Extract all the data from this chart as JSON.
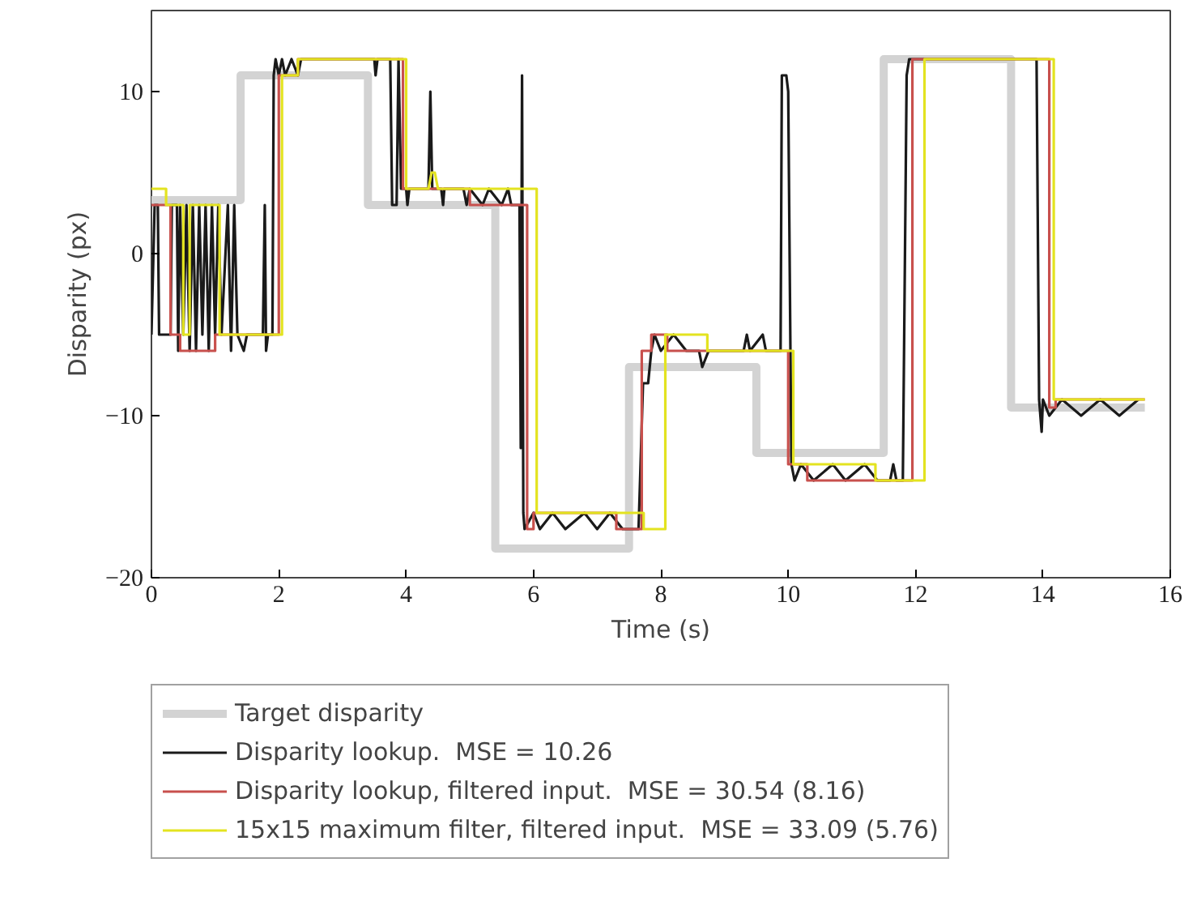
{
  "chart_data": {
    "type": "line",
    "xlabel": "Time (s)",
    "ylabel": "Disparity (px)",
    "xlim": [
      0,
      16
    ],
    "ylim": [
      -20,
      15
    ],
    "xticks": [
      0,
      2,
      4,
      6,
      8,
      10,
      12,
      14,
      16
    ],
    "yticks": [
      {
        "value": -20,
        "label": "−20"
      },
      {
        "value": -10,
        "label": "−10"
      },
      0,
      10
    ],
    "grid": false,
    "legend": "bottom",
    "line_style": "solid",
    "marker": "none",
    "series": [
      {
        "name": "Target disparity",
        "color": "#d3d3d3",
        "x": [
          0,
          1.4,
          1.4,
          3.4,
          3.4,
          5.4,
          5.4,
          7.5,
          7.5,
          9.5,
          9.5,
          11.5,
          11.5,
          13.5,
          13.5,
          15.6
        ],
        "values": [
          3.3,
          3.3,
          11,
          11,
          3,
          3,
          -18.2,
          -18.2,
          -7,
          -7,
          -12.3,
          -12.3,
          12,
          12,
          -9.5,
          -9.5
        ]
      },
      {
        "name": "Disparity lookup.  MSE = 10.26",
        "color": "#1a1a1a",
        "x": [
          0,
          0.05,
          0.1,
          0.12,
          0.3,
          0.32,
          0.4,
          0.42,
          0.45,
          0.5,
          0.55,
          0.6,
          0.65,
          0.7,
          0.75,
          0.8,
          0.85,
          0.9,
          0.95,
          1.0,
          1.05,
          1.1,
          1.2,
          1.25,
          1.3,
          1.35,
          1.45,
          1.5,
          1.75,
          1.78,
          1.8,
          1.83,
          1.9,
          1.92,
          1.95,
          2.0,
          2.05,
          2.1,
          2.2,
          2.3,
          2.35,
          3.5,
          3.52,
          3.55,
          3.75,
          3.78,
          3.85,
          3.88,
          3.92,
          4.0,
          4.02,
          4.05,
          4.35,
          4.38,
          4.41,
          4.55,
          4.58,
          4.6,
          4.9,
          4.95,
          5.0,
          5.2,
          5.3,
          5.5,
          5.6,
          5.65,
          5.78,
          5.8,
          5.82,
          5.84,
          5.86,
          6.0,
          6.1,
          6.3,
          6.5,
          6.8,
          7.0,
          7.2,
          7.4,
          7.5,
          7.65,
          7.72,
          7.8,
          7.85,
          7.9,
          8.0,
          8.2,
          8.4,
          8.6,
          8.65,
          8.75,
          9.3,
          9.35,
          9.4,
          9.6,
          9.65,
          9.88,
          9.9,
          9.97,
          10.0,
          10.05,
          10.1,
          10.2,
          10.4,
          10.7,
          10.9,
          11.2,
          11.4,
          11.6,
          11.65,
          11.7,
          11.8,
          11.86,
          11.9,
          13.9,
          13.94,
          13.98,
          14.0,
          14.1,
          14.3,
          14.6,
          14.9,
          15.2,
          15.5
        ],
        "values": [
          -5,
          3,
          3,
          -5,
          -5,
          3,
          3,
          -6,
          3,
          -5,
          3,
          -6,
          3,
          -6,
          3,
          -5,
          3,
          -6,
          3,
          -5,
          3,
          -5,
          3,
          -6,
          3,
          -5,
          -6,
          -5,
          -5,
          3,
          -6,
          -5,
          -5,
          11,
          12,
          11,
          12,
          11,
          12,
          11,
          12,
          12,
          11,
          12,
          12,
          3,
          3,
          12,
          4,
          4,
          3,
          4,
          4,
          10,
          4,
          4,
          3,
          4,
          4,
          3,
          4,
          3,
          4,
          3,
          4,
          3,
          3,
          -12,
          11,
          -16,
          -17,
          -16,
          -17,
          -16,
          -17,
          -16,
          -17,
          -16,
          -17,
          -17,
          -17,
          -8,
          -8,
          -6,
          -5,
          -6,
          -5,
          -6,
          -6,
          -7,
          -6,
          -6,
          -5,
          -6,
          -5,
          -6,
          -6,
          11,
          11,
          10,
          -13,
          -14,
          -13,
          -14,
          -13,
          -14,
          -13,
          -14,
          -14,
          -13,
          -14,
          -14,
          11,
          12,
          12,
          -9,
          -11,
          -9,
          -10,
          -9,
          -10,
          -9,
          -10,
          -9
        ]
      },
      {
        "name": "Disparity lookup, filtered input.  MSE = 30.54 (8.16)",
        "color": "#c8504d",
        "x": [
          0,
          0.3,
          0.3,
          0.45,
          0.45,
          1.0,
          1.0,
          2.0,
          2.0,
          2.3,
          2.3,
          3.95,
          3.95,
          5.0,
          5.0,
          5.9,
          5.9,
          6.0,
          6.0,
          7.3,
          7.3,
          7.7,
          7.7,
          7.85,
          7.85,
          8.1,
          8.1,
          10.0,
          10.0,
          10.3,
          10.3,
          11.95,
          11.95,
          14.1,
          14.1,
          14.2,
          14.2,
          15.6
        ],
        "values": [
          3,
          3,
          -5,
          -5,
          -6,
          -6,
          -5,
          -5,
          11,
          11,
          12,
          12,
          4,
          4,
          3,
          3,
          -17,
          -17,
          -16,
          -16,
          -17,
          -17,
          -6,
          -6,
          -5,
          -5,
          -6,
          -6,
          -13,
          -13,
          -14,
          -14,
          12,
          12,
          -9.5,
          -9.5,
          -9,
          -9
        ]
      },
      {
        "name": "15x15 maximum filter, filtered input.  MSE = 33.09 (5.76)",
        "color": "#e3e320",
        "x": [
          0,
          0.23,
          0.23,
          0.5,
          0.5,
          0.6,
          0.6,
          1.07,
          1.07,
          2.05,
          2.05,
          2.3,
          2.3,
          4.0,
          4.0,
          4.35,
          4.4,
          4.45,
          4.5,
          6.05,
          6.05,
          7.73,
          7.73,
          8.07,
          8.07,
          8.73,
          8.73,
          10.08,
          10.08,
          11.37,
          11.37,
          12.14,
          12.14,
          14.17,
          14.17,
          15.6
        ],
        "values": [
          4,
          4,
          3,
          3,
          -5,
          -5,
          3,
          3,
          -5,
          -5,
          11,
          11,
          12,
          12,
          4,
          4,
          5,
          5,
          4,
          4,
          -16,
          -16,
          -17,
          -17,
          -5,
          -5,
          -6,
          -6,
          -13,
          -13,
          -14,
          -14,
          12,
          12,
          -9,
          -9
        ]
      }
    ]
  }
}
